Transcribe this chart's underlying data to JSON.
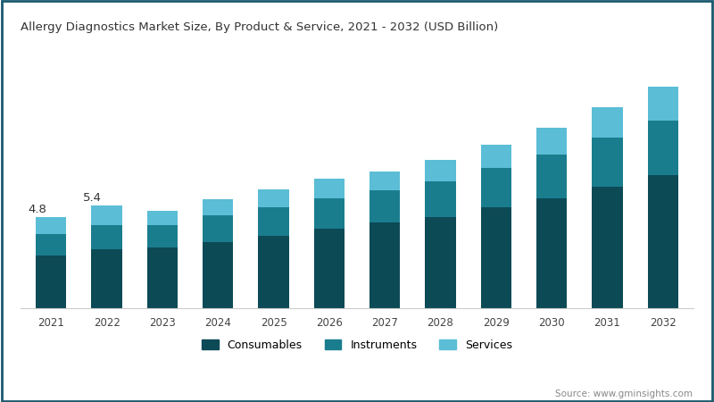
{
  "title": "Allergy Diagnostics Market Size, By Product & Service, 2021 - 2032 (USD Billion)",
  "years": [
    2021,
    2022,
    2023,
    2024,
    2025,
    2026,
    2027,
    2028,
    2029,
    2030,
    2031,
    2032
  ],
  "consumables": [
    2.8,
    3.1,
    3.2,
    3.5,
    3.8,
    4.2,
    4.5,
    4.8,
    5.3,
    5.8,
    6.4,
    7.0
  ],
  "instruments": [
    1.1,
    1.3,
    1.2,
    1.4,
    1.5,
    1.6,
    1.7,
    1.9,
    2.1,
    2.3,
    2.6,
    2.9
  ],
  "services": [
    0.9,
    1.0,
    0.75,
    0.85,
    0.95,
    1.05,
    1.0,
    1.1,
    1.2,
    1.4,
    1.6,
    1.8
  ],
  "annotations": [
    {
      "year": 2021,
      "text": "4.8"
    },
    {
      "year": 2022,
      "text": "5.4"
    }
  ],
  "color_consumables": "#0c4a56",
  "color_instruments": "#1a7d8e",
  "color_services": "#5bbdd6",
  "background_color": "#ffffff",
  "border_color": "#1a5a6e",
  "source_text": "Source: www.gminsights.com",
  "bar_width": 0.55,
  "ylim": [
    0,
    14
  ],
  "annotation_color": "#333333"
}
